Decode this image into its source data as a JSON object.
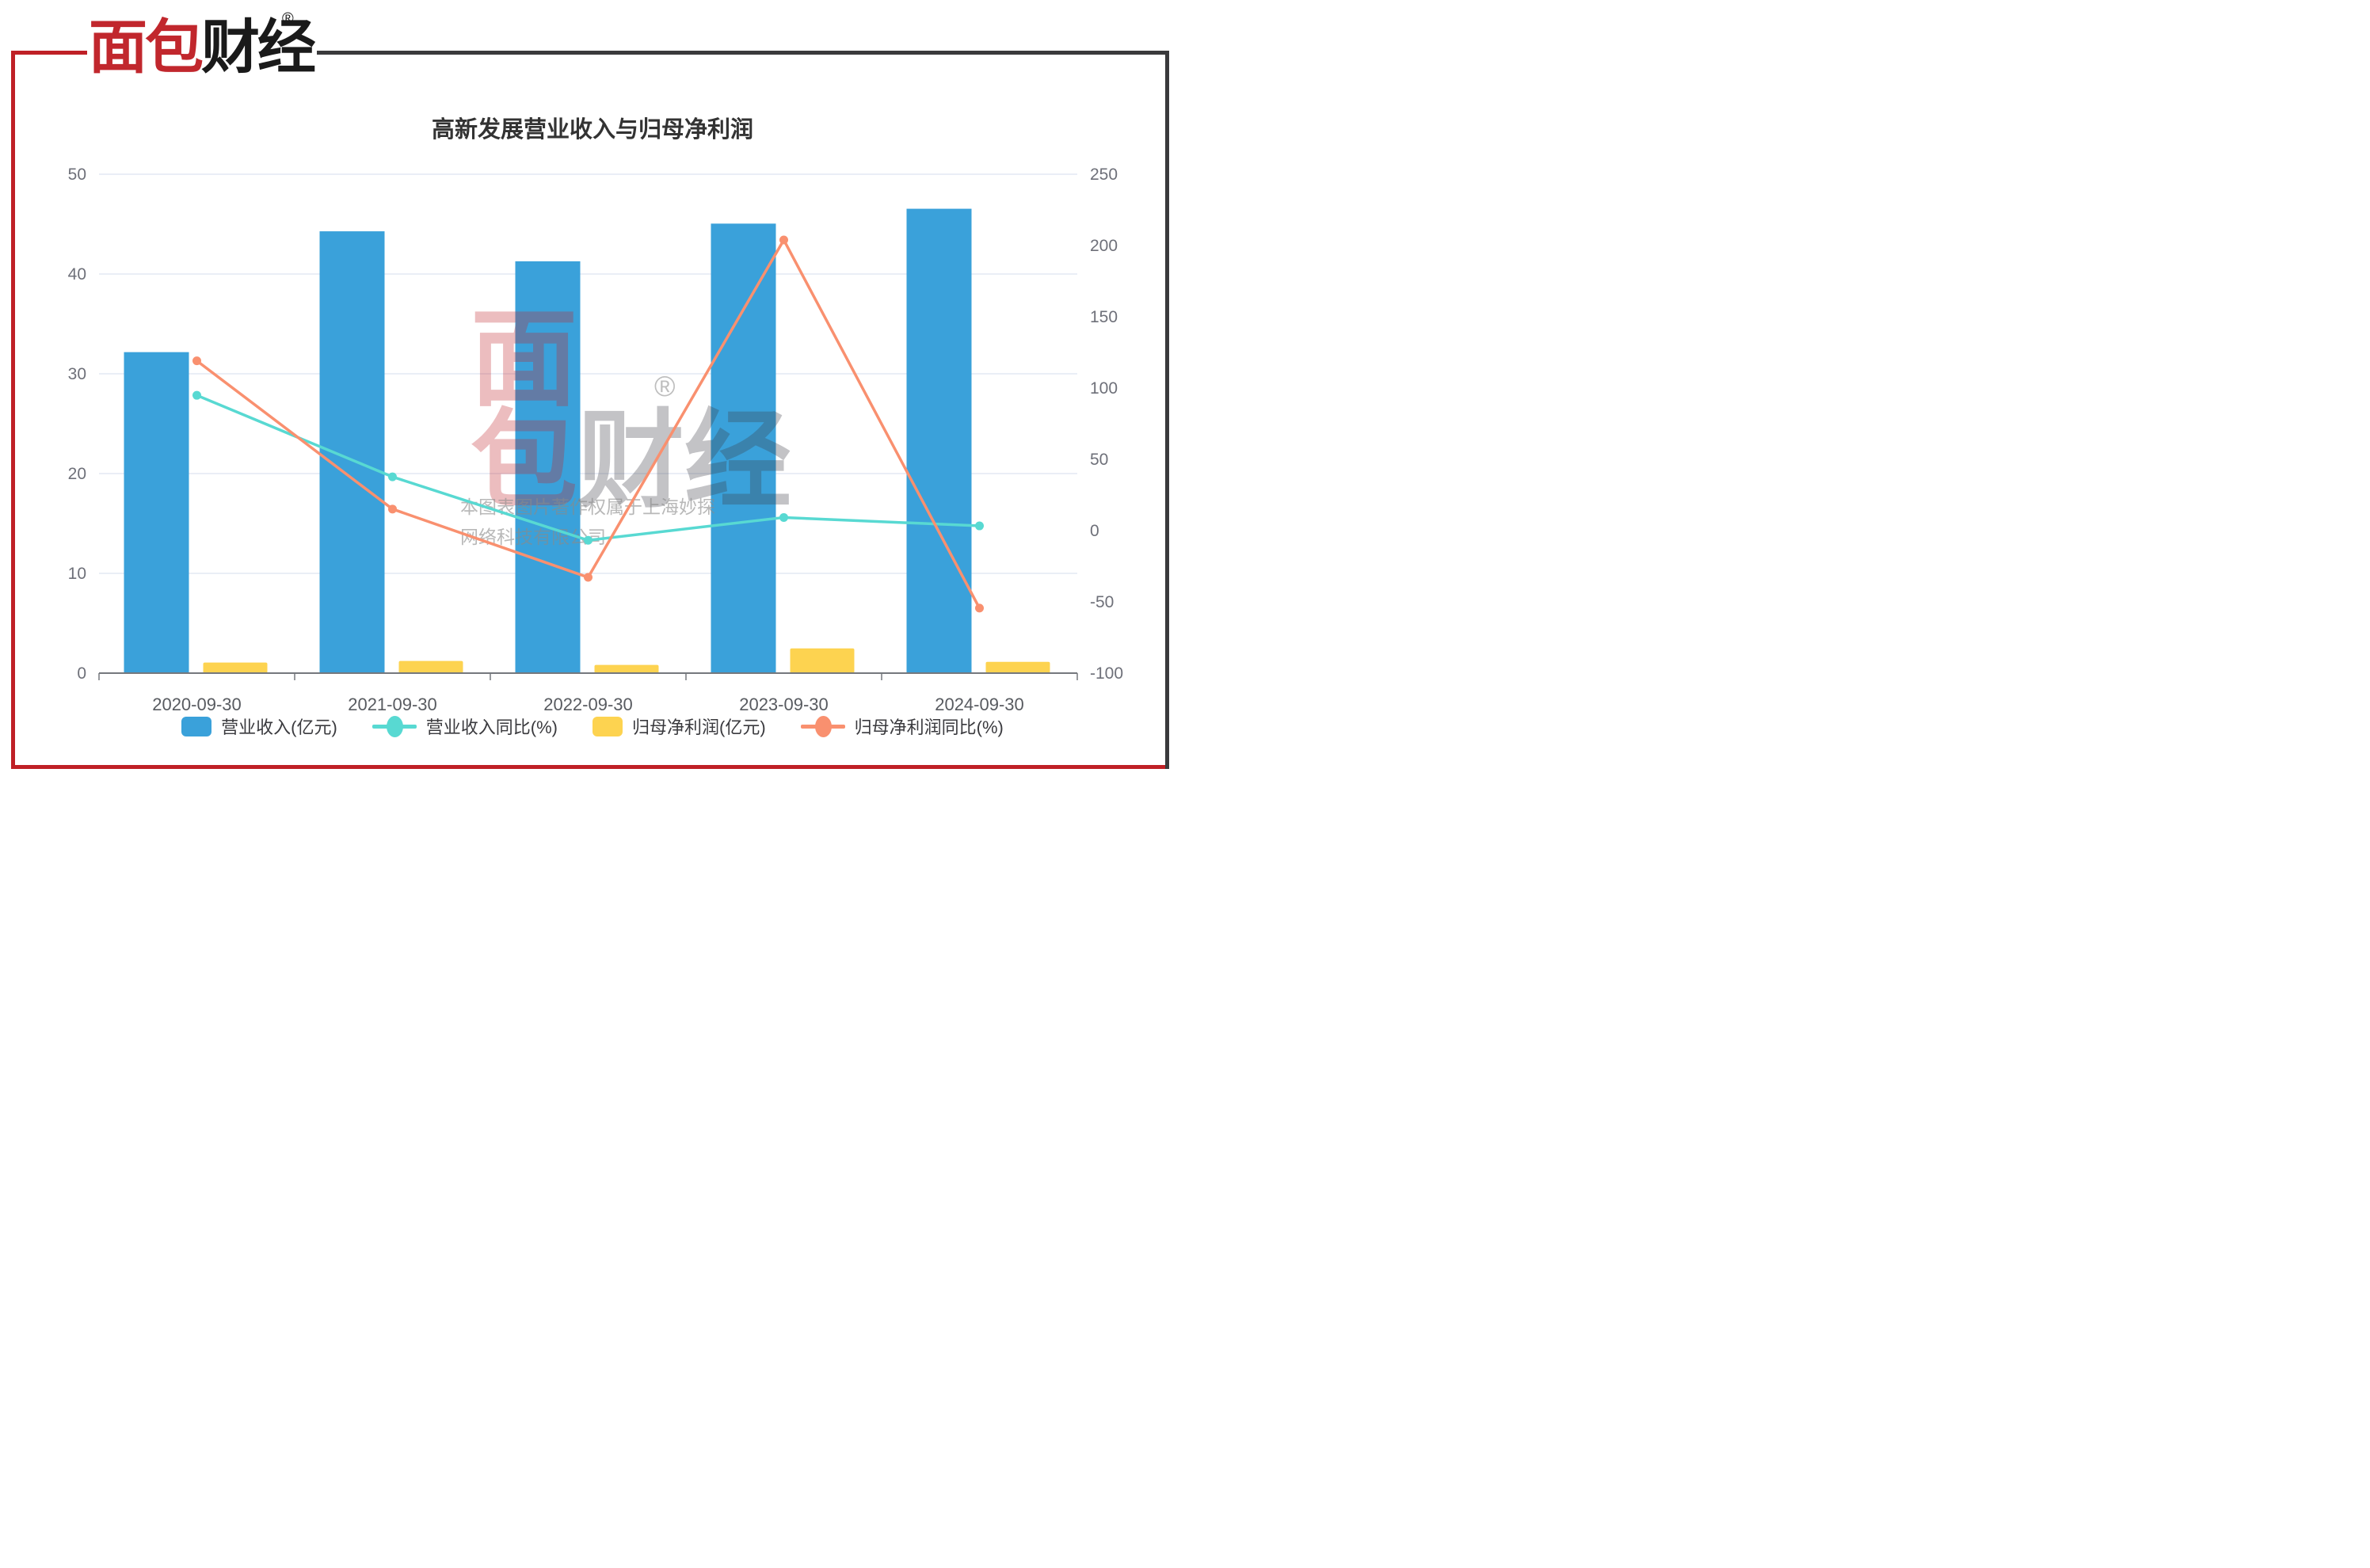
{
  "brand": {
    "logo_red": "面包",
    "logo_dark": "财经",
    "registered_mark": "®"
  },
  "watermark": {
    "logo_line1_red": "面",
    "logo_line2_red": "包",
    "logo_line2_dark": "财经",
    "registered_mark": "®",
    "copyright_line1": "本图表图片著作权属于上海妙探",
    "copyright_line2": "网络科技有限公司"
  },
  "colors": {
    "frame_red": "#bf2026",
    "frame_dark": "#3a3a3c",
    "logo_red": "#c1272d",
    "logo_dark": "#1a1a1a",
    "grid_line": "#e3e8f4",
    "axis_line": "#75787d",
    "axis_label": "#6e7079",
    "x_label": "#585b60",
    "title_text": "#333333",
    "watermark_red": "#c1272d",
    "watermark_dark": "#3c3c46",
    "watermark_gray": "#8a8a8a"
  },
  "chart_data": {
    "type": "bar",
    "title": "高新发展营业收入与归母净利润",
    "xlabel": "",
    "ylabel": "",
    "grid": true,
    "legend_position": "bottom",
    "categories": [
      "2020-09-30",
      "2021-09-30",
      "2022-09-30",
      "2023-09-30",
      "2024-09-30"
    ],
    "series": [
      {
        "name": "营业收入(亿元)",
        "type": "bar",
        "axis": "left",
        "color": "#3aa1da",
        "values": [
          32.17,
          44.28,
          41.27,
          45.05,
          46.54
        ]
      },
      {
        "name": "营业收入同比(%)",
        "type": "line",
        "axis": "right",
        "color": "#58d9d2",
        "values": [
          94.9,
          37.7,
          -6.8,
          9.2,
          3.3
        ]
      },
      {
        "name": "归母净利润(亿元)",
        "type": "bar",
        "axis": "left",
        "color": "#fdd350",
        "values": [
          1.06,
          1.22,
          0.82,
          2.48,
          1.13
        ]
      },
      {
        "name": "归母净利润同比(%)",
        "type": "line",
        "axis": "right",
        "color": "#f9906f",
        "values": [
          119.1,
          15.1,
          -32.8,
          203.9,
          -54.4
        ]
      }
    ],
    "left_axis": {
      "min": 0,
      "max": 250,
      "ticks": [
        0,
        10,
        20,
        30,
        40,
        50
      ],
      "tick_max": 50
    },
    "right_axis": {
      "min": -100,
      "max": 250,
      "ticks": [
        250,
        200,
        150,
        100,
        50,
        0,
        -50,
        -100
      ]
    }
  }
}
